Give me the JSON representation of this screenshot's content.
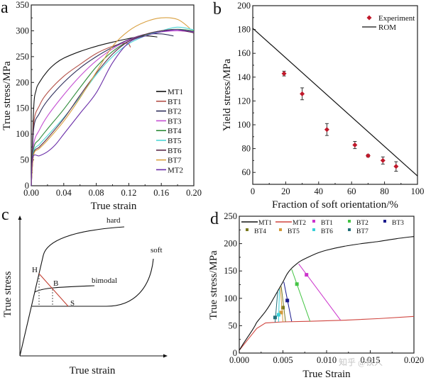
{
  "chart_data": [
    {
      "panel": "a",
      "type": "line",
      "title": "",
      "xlabel": "True strain",
      "ylabel": "True stress/MPa",
      "xlim": [
        0,
        0.2
      ],
      "ylim": [
        0,
        350
      ],
      "xticks": [
        "0.00",
        "0.04",
        "0.08",
        "0.12",
        "0.16",
        "0.20"
      ],
      "yticks": [
        "0",
        "50",
        "100",
        "150",
        "200",
        "250",
        "300",
        "350"
      ],
      "legend_position": "bottom-right",
      "series": [
        {
          "name": "MT1",
          "color": "#111111",
          "x": [
            0,
            0.003,
            0.006,
            0.01,
            0.02,
            0.03,
            0.04,
            0.06,
            0.08,
            0.1,
            0.12,
            0.14,
            0.155
          ],
          "y": [
            0,
            150,
            185,
            200,
            222,
            237,
            247,
            260,
            270,
            278,
            285,
            290,
            288
          ]
        },
        {
          "name": "BT1",
          "color": "#b5524a",
          "x": [
            0,
            0.003,
            0.01,
            0.02,
            0.04,
            0.06,
            0.08,
            0.1,
            0.115,
            0.12,
            0.122
          ],
          "y": [
            0,
            120,
            155,
            180,
            212,
            235,
            256,
            270,
            276,
            274,
            268
          ]
        },
        {
          "name": "BT2",
          "color": "#2f2f5c",
          "x": [
            0,
            0.003,
            0.01,
            0.02,
            0.04,
            0.06,
            0.08,
            0.1,
            0.12,
            0.14,
            0.16,
            0.175
          ],
          "y": [
            0,
            110,
            140,
            165,
            200,
            228,
            250,
            268,
            283,
            293,
            294,
            290
          ]
        },
        {
          "name": "BT3",
          "color": "#c44fd2",
          "x": [
            0,
            0.003,
            0.01,
            0.02,
            0.04,
            0.06,
            0.08,
            0.1,
            0.12,
            0.14,
            0.16,
            0.18,
            0.2
          ],
          "y": [
            0,
            80,
            108,
            135,
            176,
            212,
            242,
            265,
            282,
            293,
            298,
            300,
            297
          ]
        },
        {
          "name": "BT4",
          "color": "#2e8b3a",
          "x": [
            0,
            0.003,
            0.01,
            0.02,
            0.04,
            0.06,
            0.08,
            0.1,
            0.12,
            0.14,
            0.16,
            0.18,
            0.2
          ],
          "y": [
            0,
            72,
            90,
            110,
            148,
            190,
            230,
            260,
            280,
            292,
            300,
            303,
            300
          ]
        },
        {
          "name": "BT5",
          "color": "#4fd6d6",
          "x": [
            0,
            0.003,
            0.01,
            0.02,
            0.04,
            0.06,
            0.08,
            0.1,
            0.12,
            0.14,
            0.16,
            0.18,
            0.2
          ],
          "y": [
            0,
            65,
            80,
            97,
            132,
            172,
            215,
            250,
            275,
            290,
            300,
            307,
            302
          ]
        },
        {
          "name": "BT6",
          "color": "#5a2a4a",
          "x": [
            0,
            0.003,
            0.01,
            0.02,
            0.04,
            0.06,
            0.08,
            0.1,
            0.12,
            0.14,
            0.16,
            0.18,
            0.2
          ],
          "y": [
            0,
            62,
            75,
            92,
            130,
            175,
            218,
            255,
            280,
            293,
            300,
            302,
            296
          ]
        },
        {
          "name": "BT7",
          "color": "#d9a040",
          "x": [
            0,
            0.003,
            0.01,
            0.02,
            0.04,
            0.06,
            0.08,
            0.1,
            0.12,
            0.14,
            0.16,
            0.18,
            0.195
          ],
          "y": [
            0,
            60,
            72,
            88,
            125,
            170,
            220,
            270,
            300,
            317,
            325,
            322,
            305
          ]
        },
        {
          "name": "MT2",
          "color": "#6a2ea8",
          "x": [
            0,
            0.002,
            0.01,
            0.02,
            0.03,
            0.04,
            0.06,
            0.08,
            0.1,
            0.12,
            0.14,
            0.16,
            0.18,
            0.2
          ],
          "y": [
            0,
            55,
            58,
            66,
            80,
            100,
            140,
            180,
            238,
            277,
            290,
            298,
            302,
            298
          ]
        }
      ]
    },
    {
      "panel": "b",
      "type": "scatter",
      "title": "",
      "xlabel": "Fraction of soft orientation/%",
      "ylabel": "Yield stress/MPa",
      "xlim": [
        0,
        100
      ],
      "ylim": [
        50,
        200
      ],
      "xticks": [
        "0",
        "20",
        "40",
        "60",
        "80",
        "100"
      ],
      "yticks": [
        "60",
        "80",
        "100",
        "120",
        "140",
        "160",
        "180",
        "200"
      ],
      "legend_position": "top-right",
      "series": [
        {
          "name": "Experiment",
          "kind": "scatter",
          "color": "#c0182a",
          "x": [
            19,
            30,
            45,
            62,
            70,
            79,
            87
          ],
          "y": [
            143,
            126,
            96,
            83,
            74,
            70,
            65
          ],
          "error": [
            2,
            5,
            5,
            3,
            1,
            3,
            4
          ]
        },
        {
          "name": "ROM",
          "kind": "line",
          "color": "#111111",
          "x": [
            0,
            100
          ],
          "y": [
            181,
            57
          ]
        }
      ]
    },
    {
      "panel": "c",
      "type": "line",
      "title": "",
      "xlabel": "True strain",
      "ylabel": "True stress",
      "schematic": true,
      "curve_labels": [
        "hard",
        "soft",
        "bimodal"
      ],
      "point_labels": [
        "H",
        "B",
        "S"
      ]
    },
    {
      "panel": "d",
      "type": "line",
      "title": "",
      "xlabel": "True Strain",
      "ylabel": "True stress/MPa",
      "xlim": [
        0,
        0.02
      ],
      "ylim": [
        0,
        250
      ],
      "xticks": [
        "0.000",
        "0.005",
        "0.010",
        "0.015",
        "0.020"
      ],
      "yticks": [
        "0",
        "50",
        "100",
        "150",
        "200",
        "250"
      ],
      "legend_position": "top",
      "series": [
        {
          "name": "MT1",
          "kind": "line",
          "color": "#111111",
          "x": [
            0,
            0.0005,
            0.001,
            0.0015,
            0.0018,
            0.002,
            0.0025,
            0.003,
            0.0035,
            0.004,
            0.0045,
            0.005,
            0.0055,
            0.006,
            0.0065,
            0.007,
            0.008,
            0.009,
            0.01,
            0.012,
            0.014,
            0.016,
            0.018,
            0.02
          ],
          "y": [
            5,
            18,
            30,
            42,
            50,
            56,
            66,
            76,
            88,
            102,
            116,
            130,
            145,
            155,
            162,
            168,
            176,
            183,
            188,
            195,
            200,
            204,
            209,
            213
          ]
        },
        {
          "name": "MT2",
          "kind": "line",
          "color": "#d0453f",
          "x": [
            0,
            0.001,
            0.002,
            0.003,
            0.005,
            0.008,
            0.012,
            0.016,
            0.02
          ],
          "y": [
            5,
            25,
            45,
            55,
            57,
            58,
            60,
            63,
            67
          ]
        },
        {
          "name": "BT1",
          "color": "#cc33cc",
          "line": [
            [
              0.0068,
              163
            ],
            [
              0.0116,
              60
            ]
          ],
          "marker": [
            0.0077,
            143
          ]
        },
        {
          "name": "BT2",
          "color": "#44c444",
          "line": [
            [
              0.006,
              153
            ],
            [
              0.0081,
              58
            ]
          ],
          "marker": [
            0.0066,
            126
          ]
        },
        {
          "name": "BT3",
          "color": "#1a1a8c",
          "line": [
            [
              0.0051,
              130
            ],
            [
              0.006,
              58
            ]
          ],
          "marker": [
            0.0055,
            96
          ]
        },
        {
          "name": "BT4",
          "color": "#7a7a20",
          "line": [
            [
              0.0048,
              122
            ],
            [
              0.0053,
              57
            ]
          ],
          "marker": [
            0.005,
            83
          ]
        },
        {
          "name": "BT5",
          "color": "#d49a3a",
          "line": [
            [
              0.0047,
              120
            ],
            [
              0.005,
              57
            ]
          ],
          "marker": [
            0.0048,
            74
          ]
        },
        {
          "name": "BT6",
          "color": "#3ad0d8",
          "line": [
            [
              0.0046,
              117
            ],
            [
              0.0045,
              57
            ]
          ],
          "marker": [
            0.0045,
            70
          ]
        },
        {
          "name": "BT7",
          "color": "#236f7a",
          "line": [
            [
              0.0044,
              112
            ],
            [
              0.0041,
              56
            ]
          ],
          "marker": [
            0.0041,
            65
          ]
        }
      ]
    }
  ],
  "panel_labels": [
    "a",
    "b",
    "c",
    "d"
  ],
  "watermark": "知乎 @铁人"
}
